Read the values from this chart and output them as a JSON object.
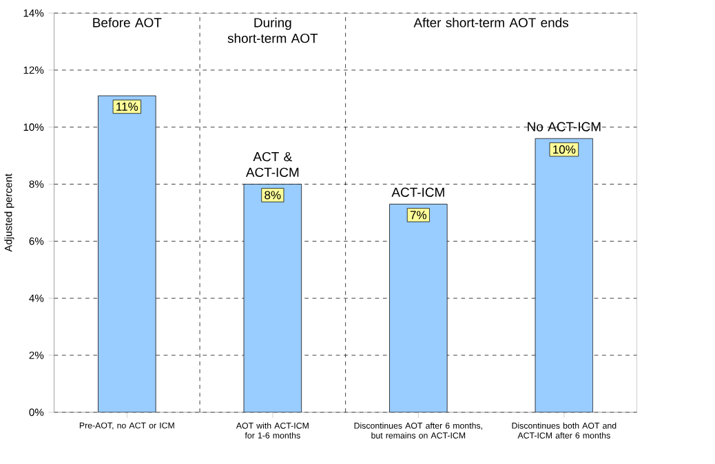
{
  "chart_data": {
    "type": "bar",
    "ylabel": "Adjusted percent",
    "categories": [
      "Pre-AOT, no ACT or ICM",
      "AOT with ACT-ICM for 1-6 months",
      "Discontinues AOT after 6 months, but remains on ACT-ICM",
      "Discontinues both AOT and ACT-ICM after 6 months"
    ],
    "values": [
      11.1,
      8.0,
      7.3,
      9.6
    ],
    "value_labels": [
      "11%",
      "8%",
      "7%",
      "10%"
    ],
    "color": "#99ccff",
    "ylim": [
      0,
      14
    ],
    "yticks": [
      {
        "value": 0,
        "label": "0%"
      },
      {
        "value": 2,
        "label": "2%"
      },
      {
        "value": 4,
        "label": "4%"
      },
      {
        "value": 6,
        "label": "6%"
      },
      {
        "value": 8,
        "label": "8%"
      },
      {
        "value": 10,
        "label": "10%"
      },
      {
        "value": 12,
        "label": "12%"
      },
      {
        "value": 14,
        "label": "14%"
      }
    ],
    "grid": "y",
    "annotations": [
      "Before AOT",
      "During short-term AOT",
      "After short-term AOT ends",
      {
        "text": "ACT & ACT-ICM",
        "x": "AOT with ACT-ICM for 1-6 months",
        "y": 8.0
      },
      {
        "text": "ACT-ICM",
        "x": "Discontinues AOT after 6 months, but remains on ACT-ICM",
        "y": 7.3
      },
      {
        "text": "No ACT-ICM",
        "x": "Discontinues both AOT and ACT-ICM after 6 months",
        "y": 9.6
      }
    ]
  }
}
